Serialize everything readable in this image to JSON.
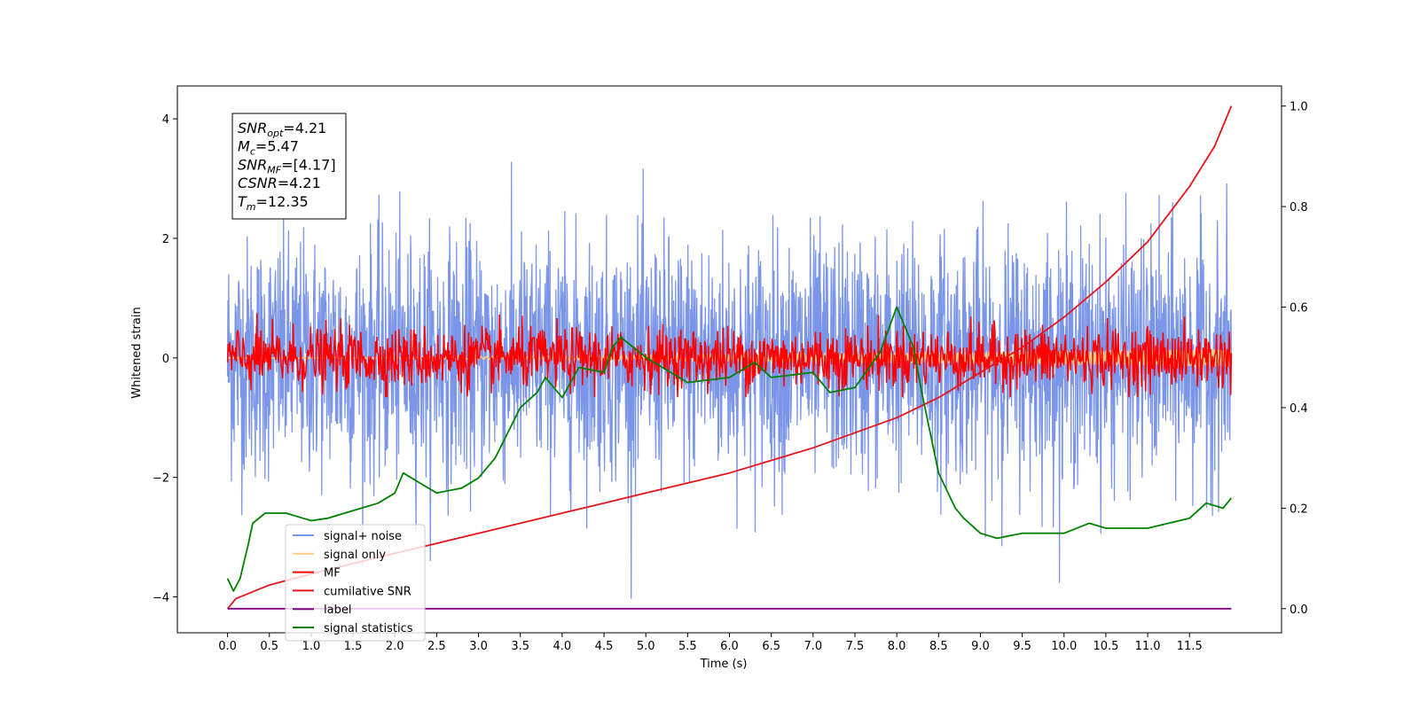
{
  "chart_data": {
    "type": "line",
    "xlabel": "Time (s)",
    "ylabel": "Whitened strain",
    "xlim": [
      -0.6,
      12.6
    ],
    "ylim_left": [
      -4.6,
      4.55
    ],
    "ylim_right": [
      -0.048,
      1.04
    ],
    "x_ticks": [
      "0.0",
      "0.5",
      "1.0",
      "1.5",
      "2.0",
      "2.5",
      "3.0",
      "3.5",
      "4.0",
      "4.5",
      "5.0",
      "5.5",
      "6.0",
      "6.5",
      "7.0",
      "7.5",
      "8.0",
      "8.5",
      "9.0",
      "9.5",
      "10.0",
      "10.5",
      "11.0",
      "11.5"
    ],
    "y_ticks_left": [
      "4",
      "2",
      "0",
      "−2",
      "−4"
    ],
    "y_ticks_right": [
      "1.0",
      "0.8",
      "0.6",
      "0.4",
      "0.2",
      "0.0"
    ],
    "annotation": {
      "lines": [
        {
          "main": "SNR",
          "sub": "opt",
          "value": "=4.21"
        },
        {
          "main": "M",
          "sub": "c",
          "value": "=5.47"
        },
        {
          "main": "SNR",
          "sub": "MF",
          "value": "=[4.17]"
        },
        {
          "main": "CSNR",
          "sub": "",
          "value": "=4.21"
        },
        {
          "main": "T",
          "sub": "m",
          "value": "=12.35"
        }
      ]
    },
    "legend": {
      "placement": "lower-left",
      "entries": [
        {
          "label": "signal+ noise",
          "color": "#7b96e8"
        },
        {
          "label": "signal only",
          "color": "#ffcc80"
        },
        {
          "label": "MF",
          "color": "#ff0000"
        },
        {
          "label": "cumilative SNR",
          "color": "#e8141c"
        },
        {
          "label": "label",
          "color": "#800080"
        },
        {
          "label": "signal statistics",
          "color": "#008000"
        }
      ]
    },
    "series": [
      {
        "name": "signal+ noise",
        "axis": "left",
        "kind": "noise",
        "x_range": [
          0,
          12
        ],
        "approx_std": 1.0,
        "color": "#7b96e8"
      },
      {
        "name": "signal only",
        "axis": "left",
        "kind": "chirp",
        "x_range": [
          0,
          12
        ],
        "approx_amplitude_end": 0.15,
        "color": "#ffcc80"
      },
      {
        "name": "MF",
        "axis": "left",
        "kind": "noise",
        "x_range": [
          0,
          12
        ],
        "approx_std": 0.25,
        "color": "#ff0000"
      },
      {
        "name": "cumilative SNR",
        "axis": "right",
        "color": "#e8141c",
        "x": [
          0,
          0.1,
          0.5,
          1,
          1.5,
          2,
          2.5,
          3,
          3.5,
          4,
          4.5,
          5,
          5.5,
          6,
          6.5,
          7,
          7.5,
          8,
          8.5,
          9,
          9.5,
          10,
          10.5,
          11,
          11.5,
          11.8,
          12
        ],
        "y": [
          0,
          0.02,
          0.047,
          0.069,
          0.09,
          0.11,
          0.13,
          0.15,
          0.17,
          0.19,
          0.21,
          0.23,
          0.25,
          0.27,
          0.295,
          0.32,
          0.35,
          0.38,
          0.42,
          0.47,
          0.52,
          0.58,
          0.65,
          0.73,
          0.84,
          0.92,
          1.0
        ]
      },
      {
        "name": "label",
        "axis": "right",
        "color": "#800080",
        "x": [
          0,
          12
        ],
        "y": [
          0.0,
          0.0
        ]
      },
      {
        "name": "signal statistics",
        "axis": "right",
        "color": "#008000",
        "x": [
          0,
          0.07,
          0.15,
          0.25,
          0.3,
          0.45,
          0.7,
          0.9,
          1.0,
          1.2,
          1.4,
          1.6,
          1.8,
          2.0,
          2.1,
          2.3,
          2.5,
          2.8,
          3.0,
          3.2,
          3.5,
          3.7,
          3.8,
          4.0,
          4.2,
          4.5,
          4.6,
          4.7,
          5.0,
          5.2,
          5.5,
          6.0,
          6.3,
          6.5,
          7.0,
          7.2,
          7.5,
          7.8,
          8.0,
          8.1,
          8.2,
          8.3,
          8.5,
          8.7,
          8.8,
          9.0,
          9.2,
          9.5,
          10.0,
          10.3,
          10.5,
          11.0,
          11.5,
          11.7,
          11.9,
          12.0
        ],
        "y": [
          0.06,
          0.035,
          0.06,
          0.13,
          0.17,
          0.19,
          0.19,
          0.18,
          0.175,
          0.18,
          0.19,
          0.2,
          0.21,
          0.23,
          0.27,
          0.25,
          0.23,
          0.24,
          0.26,
          0.3,
          0.4,
          0.43,
          0.46,
          0.42,
          0.48,
          0.47,
          0.52,
          0.54,
          0.5,
          0.48,
          0.45,
          0.46,
          0.49,
          0.46,
          0.47,
          0.43,
          0.44,
          0.51,
          0.6,
          0.56,
          0.52,
          0.43,
          0.27,
          0.2,
          0.18,
          0.15,
          0.14,
          0.15,
          0.15,
          0.17,
          0.16,
          0.16,
          0.18,
          0.21,
          0.2,
          0.22
        ]
      }
    ]
  }
}
